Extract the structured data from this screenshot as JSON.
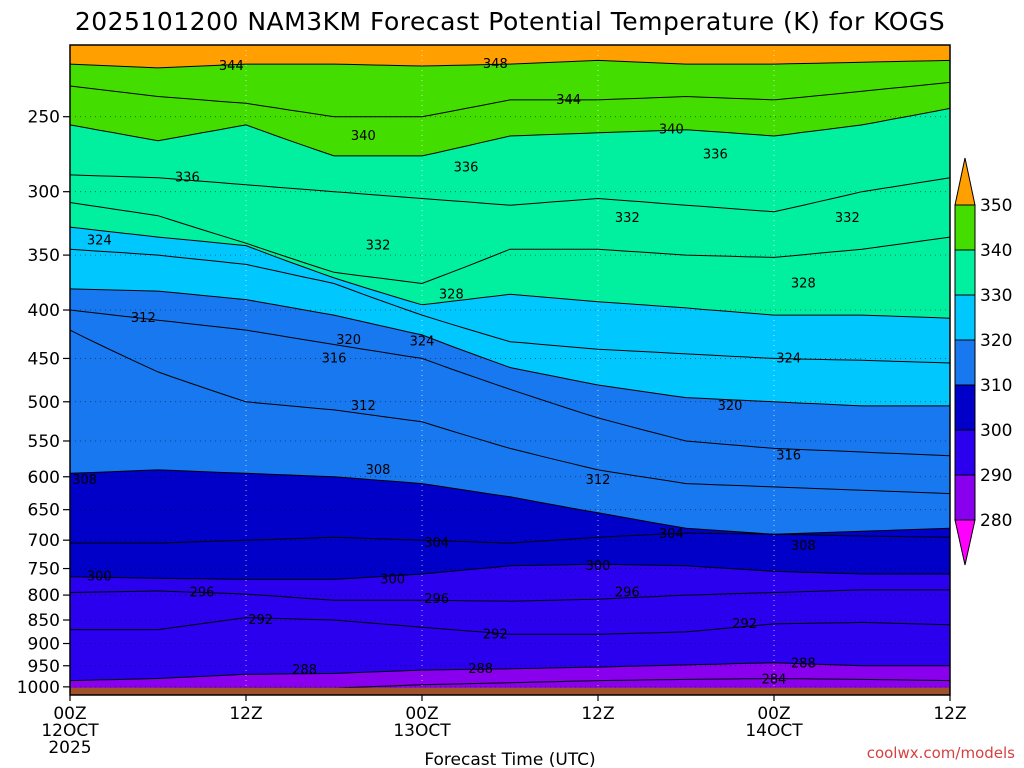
{
  "chart_data": {
    "type": "contour-cross-section",
    "title": "2025101200 NAM3KM Forecast Potential Temperature (K) for KOGS",
    "xlabel": "Forecast Time (UTC)",
    "ylabel": "",
    "credit": "coolwx.com/models",
    "y_scale": "log",
    "y_reversed": true,
    "ylim": [
      210,
      1020
    ],
    "y_ticks": [
      250,
      300,
      350,
      400,
      450,
      500,
      550,
      600,
      650,
      700,
      750,
      800,
      850,
      900,
      950,
      1000
    ],
    "y_tick_labels": [
      "250",
      "300",
      "350",
      "400",
      "450",
      "500",
      "550",
      "600",
      "650",
      "700",
      "750",
      "800",
      "850",
      "900",
      "950",
      "1000"
    ],
    "xlim": [
      0,
      60
    ],
    "x_ticks": [
      {
        "x": 0,
        "lines": [
          "00Z",
          "12OCT",
          "2025"
        ]
      },
      {
        "x": 12,
        "lines": [
          "12Z"
        ]
      },
      {
        "x": 24,
        "lines": [
          "00Z",
          "13OCT"
        ]
      },
      {
        "x": 36,
        "lines": [
          "12Z"
        ]
      },
      {
        "x": 48,
        "lines": [
          "00Z",
          "14OCT"
        ]
      },
      {
        "x": 60,
        "lines": [
          "12Z"
        ]
      }
    ],
    "grid": true,
    "ground_color": "#a0522d",
    "colorbar": {
      "levels": [
        280,
        290,
        300,
        310,
        320,
        330,
        340,
        350
      ],
      "labels": [
        "280",
        "290",
        "300",
        "310",
        "320",
        "330",
        "340",
        "350"
      ],
      "colors": [
        "#ff00ff",
        "#8800ee",
        "#2a00ee",
        "#0000c8",
        "#1878f0",
        "#00c8ff",
        "#00f0a0",
        "#44dd00",
        "#f0f000",
        "#ffa000"
      ]
    },
    "contour_interval": 4,
    "x": [
      0,
      6,
      12,
      18,
      24,
      30,
      36,
      42,
      48,
      54,
      60
    ],
    "theta_profiles": [
      {
        "theta": 284,
        "p": [
          1005,
          1004,
          1003,
          1003,
          995,
          990,
          985,
          982,
          980,
          982,
          985
        ]
      },
      {
        "theta": 288,
        "p": [
          985,
          980,
          970,
          968,
          960,
          957,
          953,
          948,
          943,
          950,
          950
        ]
      },
      {
        "theta": 292,
        "p": [
          870,
          870,
          845,
          850,
          865,
          880,
          880,
          875,
          858,
          855,
          860
        ]
      },
      {
        "theta": 296,
        "p": [
          795,
          792,
          798,
          810,
          810,
          812,
          808,
          800,
          795,
          790,
          790
        ]
      },
      {
        "theta": 300,
        "p": [
          765,
          768,
          770,
          770,
          760,
          745,
          742,
          745,
          755,
          760,
          760
        ]
      },
      {
        "theta": 304,
        "p": [
          705,
          705,
          700,
          695,
          700,
          705,
          695,
          688,
          690,
          693,
          695
        ]
      },
      {
        "theta": 308,
        "p": [
          595,
          590,
          595,
          600,
          610,
          630,
          655,
          680,
          690,
          685,
          680
        ]
      },
      {
        "theta": 312,
        "p": [
          420,
          465,
          500,
          510,
          525,
          560,
          590,
          610,
          615,
          620,
          625
        ]
      },
      {
        "theta": 316,
        "p": [
          400,
          410,
          420,
          435,
          450,
          485,
          520,
          550,
          560,
          565,
          570
        ]
      },
      {
        "theta": 320,
        "p": [
          380,
          382,
          390,
          405,
          425,
          460,
          480,
          495,
          500,
          505,
          505
        ]
      },
      {
        "theta": 324,
        "p": [
          345,
          350,
          358,
          375,
          405,
          432,
          440,
          445,
          450,
          452,
          455
        ]
      },
      {
        "theta": 328,
        "p": [
          327,
          335,
          342,
          370,
          395,
          385,
          392,
          398,
          405,
          405,
          408
        ]
      },
      {
        "theta": 332,
        "p": [
          308,
          318,
          340,
          365,
          375,
          345,
          345,
          350,
          352,
          345,
          335
        ]
      },
      {
        "theta": 336,
        "p": [
          288,
          290,
          295,
          300,
          305,
          310,
          305,
          310,
          315,
          300,
          290
        ]
      },
      {
        "theta": 340,
        "p": [
          255,
          265,
          255,
          275,
          275,
          262,
          260,
          258,
          262,
          255,
          245
        ]
      },
      {
        "theta": 344,
        "p": [
          232,
          238,
          242,
          250,
          250,
          240,
          240,
          238,
          240,
          235,
          230
        ]
      },
      {
        "theta": 348,
        "p": [
          220,
          222,
          220,
          220,
          221,
          220,
          218,
          220,
          220,
          219,
          218
        ]
      }
    ],
    "contour_labels": [
      {
        "text": "344",
        "x": 11,
        "p": 221
      },
      {
        "text": "348",
        "x": 29,
        "p": 220
      },
      {
        "text": "344",
        "x": 34,
        "p": 240
      },
      {
        "text": "340",
        "x": 20,
        "p": 262
      },
      {
        "text": "340",
        "x": 41,
        "p": 258
      },
      {
        "text": "336",
        "x": 8,
        "p": 290
      },
      {
        "text": "336",
        "x": 27,
        "p": 283
      },
      {
        "text": "336",
        "x": 44,
        "p": 274
      },
      {
        "text": "332",
        "x": 21,
        "p": 342
      },
      {
        "text": "332",
        "x": 38,
        "p": 320
      },
      {
        "text": "332",
        "x": 53,
        "p": 320
      },
      {
        "text": "324",
        "x": 2,
        "p": 338
      },
      {
        "text": "328",
        "x": 26,
        "p": 385
      },
      {
        "text": "328",
        "x": 50,
        "p": 375
      },
      {
        "text": "312",
        "x": 5,
        "p": 408
      },
      {
        "text": "320",
        "x": 19,
        "p": 430
      },
      {
        "text": "324",
        "x": 24,
        "p": 432
      },
      {
        "text": "316",
        "x": 18,
        "p": 450
      },
      {
        "text": "324",
        "x": 49,
        "p": 450
      },
      {
        "text": "312",
        "x": 20,
        "p": 505
      },
      {
        "text": "320",
        "x": 45,
        "p": 505
      },
      {
        "text": "316",
        "x": 49,
        "p": 570
      },
      {
        "text": "308",
        "x": 1,
        "p": 605
      },
      {
        "text": "308",
        "x": 21,
        "p": 590
      },
      {
        "text": "312",
        "x": 36,
        "p": 605
      },
      {
        "text": "304",
        "x": 25,
        "p": 705
      },
      {
        "text": "304",
        "x": 41,
        "p": 690
      },
      {
        "text": "308",
        "x": 50,
        "p": 710
      },
      {
        "text": "300",
        "x": 2,
        "p": 765
      },
      {
        "text": "300",
        "x": 22,
        "p": 770
      },
      {
        "text": "300",
        "x": 36,
        "p": 745
      },
      {
        "text": "296",
        "x": 9,
        "p": 795
      },
      {
        "text": "296",
        "x": 25,
        "p": 808
      },
      {
        "text": "296",
        "x": 38,
        "p": 795
      },
      {
        "text": "292",
        "x": 13,
        "p": 850
      },
      {
        "text": "292",
        "x": 29,
        "p": 880
      },
      {
        "text": "292",
        "x": 46,
        "p": 858
      },
      {
        "text": "288",
        "x": 16,
        "p": 960
      },
      {
        "text": "288",
        "x": 28,
        "p": 957
      },
      {
        "text": "288",
        "x": 50,
        "p": 945
      },
      {
        "text": "284",
        "x": 48,
        "p": 982
      }
    ]
  }
}
